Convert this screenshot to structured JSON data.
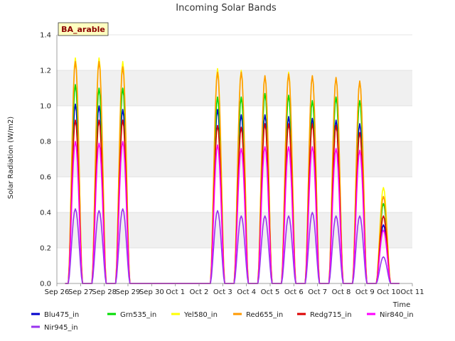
{
  "chart_data": {
    "type": "line",
    "title": "Incoming Solar Bands",
    "xlabel": "Time",
    "ylabel": "Solar Radiation (W/m2)",
    "badge": "BA_arable",
    "ylim": [
      0,
      1.4
    ],
    "yticks": [
      "0.0",
      "0.2",
      "0.4",
      "0.6",
      "0.8",
      "1.0",
      "1.2",
      "1.4"
    ],
    "xlim_days": [
      0,
      15
    ],
    "xticks": [
      "Sep 26",
      "Sep 27",
      "Sep 28",
      "Sep 29",
      "Sep 30",
      "Oct 1",
      "Oct 2",
      "Oct 3",
      "Oct 4",
      "Oct 5",
      "Oct 6",
      "Oct 7",
      "Oct 8",
      "Oct 9",
      "Oct 10",
      "Oct 11"
    ],
    "grid": "horizontal bands",
    "legend_position": "bottom",
    "x_start_label": "Sep 26",
    "data_range_days": [
      0.35,
      14.45
    ],
    "day_peaks": [
      {
        "center": 0.78,
        "Blu475_in": 1.01,
        "Grn535_in": 1.12,
        "Yel580_in": 1.27,
        "Red655_in": 1.25,
        "Redg715_in": 0.92,
        "Nir840_in": 0.8,
        "Nir945_in": 0.42
      },
      {
        "center": 1.78,
        "Blu475_in": 1.0,
        "Grn535_in": 1.1,
        "Yel580_in": 1.27,
        "Red655_in": 1.25,
        "Redg715_in": 0.92,
        "Nir840_in": 0.79,
        "Nir945_in": 0.41
      },
      {
        "center": 2.78,
        "Blu475_in": 0.98,
        "Grn535_in": 1.1,
        "Yel580_in": 1.25,
        "Red655_in": 1.22,
        "Redg715_in": 0.92,
        "Nir840_in": 0.8,
        "Nir945_in": 0.42
      },
      {
        "center": 6.78,
        "Blu475_in": 0.98,
        "Grn535_in": 1.05,
        "Yel580_in": 1.21,
        "Red655_in": 1.19,
        "Redg715_in": 0.89,
        "Nir840_in": 0.78,
        "Nir945_in": 0.41
      },
      {
        "center": 7.78,
        "Blu475_in": 0.95,
        "Grn535_in": 1.05,
        "Yel580_in": 1.2,
        "Red655_in": 1.19,
        "Redg715_in": 0.88,
        "Nir840_in": 0.76,
        "Nir945_in": 0.38
      },
      {
        "center": 8.78,
        "Blu475_in": 0.95,
        "Grn535_in": 1.07,
        "Yel580_in": 1.17,
        "Red655_in": 1.17,
        "Redg715_in": 0.9,
        "Nir840_in": 0.77,
        "Nir945_in": 0.38
      },
      {
        "center": 9.78,
        "Blu475_in": 0.94,
        "Grn535_in": 1.06,
        "Yel580_in": 1.19,
        "Red655_in": 1.18,
        "Redg715_in": 0.9,
        "Nir840_in": 0.77,
        "Nir945_in": 0.38
      },
      {
        "center": 10.78,
        "Blu475_in": 0.93,
        "Grn535_in": 1.03,
        "Yel580_in": 1.17,
        "Red655_in": 1.17,
        "Redg715_in": 0.9,
        "Nir840_in": 0.77,
        "Nir945_in": 0.4
      },
      {
        "center": 11.78,
        "Blu475_in": 0.92,
        "Grn535_in": 1.05,
        "Yel580_in": 1.16,
        "Red655_in": 1.16,
        "Redg715_in": 0.89,
        "Nir840_in": 0.76,
        "Nir945_in": 0.38
      },
      {
        "center": 12.78,
        "Blu475_in": 0.9,
        "Grn535_in": 1.03,
        "Yel580_in": 1.14,
        "Red655_in": 1.14,
        "Redg715_in": 0.85,
        "Nir840_in": 0.75,
        "Nir945_in": 0.38
      },
      {
        "center": 13.78,
        "Blu475_in": 0.33,
        "Grn535_in": 0.45,
        "Yel580_in": 0.54,
        "Red655_in": 0.49,
        "Redg715_in": 0.38,
        "Nir840_in": 0.3,
        "Nir945_in": 0.15
      }
    ],
    "series": [
      {
        "name": "Blu475_in",
        "color": "#0000cc"
      },
      {
        "name": "Grn535_in",
        "color": "#00dd00"
      },
      {
        "name": "Yel580_in",
        "color": "#ffff00"
      },
      {
        "name": "Red655_in",
        "color": "#ff9900"
      },
      {
        "name": "Redg715_in",
        "color": "#dd0000"
      },
      {
        "name": "Nir840_in",
        "color": "#ff00ff"
      },
      {
        "name": "Nir945_in",
        "color": "#9933ee"
      }
    ]
  }
}
